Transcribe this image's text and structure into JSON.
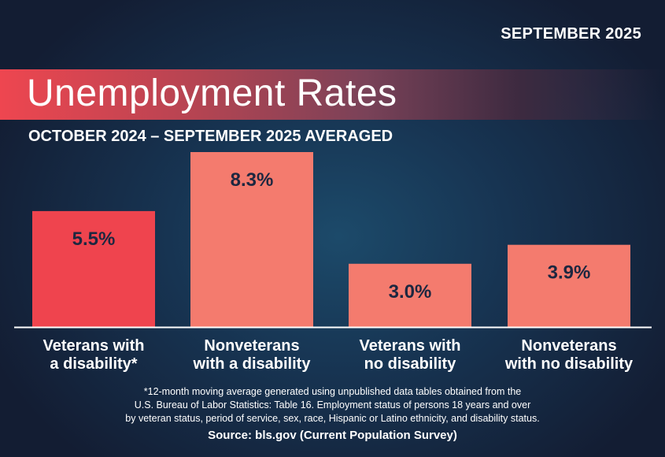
{
  "header": {
    "date": "SEPTEMBER 2025",
    "title": "Unemployment Rates",
    "subtitle": "OCTOBER 2024 – SEPTEMBER 2025 AVERAGED"
  },
  "chart_data": {
    "type": "bar",
    "categories": [
      "Veterans with a disability*",
      "Nonveterans with a disability",
      "Veterans with no disability",
      "Nonveterans with no disability"
    ],
    "category_lines": [
      [
        "Veterans with",
        "a disability*"
      ],
      [
        "Nonveterans",
        "with a disability"
      ],
      [
        "Veterans with",
        "no disability"
      ],
      [
        "Nonveterans",
        "with no disability"
      ]
    ],
    "values": [
      5.5,
      8.3,
      3.0,
      3.9
    ],
    "data_labels": [
      "5.5%",
      "8.3%",
      "3.0%",
      "3.9%"
    ],
    "colors": [
      "#ef444e",
      "#f47b6e",
      "#f47b6e",
      "#f47b6e"
    ],
    "ylim": [
      0,
      8.3
    ],
    "grid": false,
    "title": "Unemployment Rates"
  },
  "footer": {
    "note_lines": [
      "*12-month moving average generated using unpublished data tables obtained from the",
      "U.S. Bureau of Labor Statistics: Table 16. Employment status of persons 18 years and over",
      "by veteran status, period of service, sex, race, Hispanic or Latino ethnicity, and disability status."
    ],
    "source": "Source: bls.gov (Current Population Survey)"
  }
}
